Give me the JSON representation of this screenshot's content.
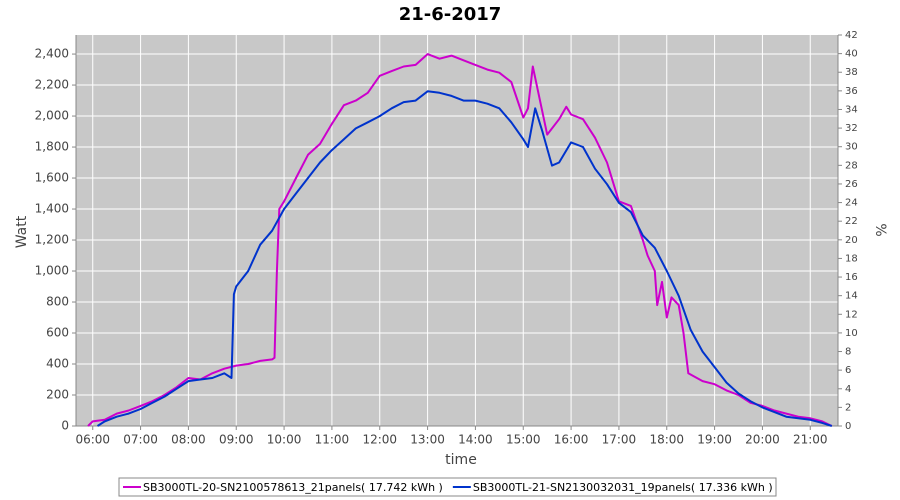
{
  "chart_data": {
    "type": "line",
    "title": "21-6-2017",
    "xlabel": "time",
    "ylabel": "Watt",
    "y2label": "%",
    "xlim": [
      5.65,
      21.58
    ],
    "xticks": [
      {
        "value": 6,
        "label": "06:00"
      },
      {
        "value": 7,
        "label": "07:00"
      },
      {
        "value": 8,
        "label": "08:00"
      },
      {
        "value": 9,
        "label": "09:00"
      },
      {
        "value": 10,
        "label": "10:00"
      },
      {
        "value": 11,
        "label": "11:00"
      },
      {
        "value": 12,
        "label": "12:00"
      },
      {
        "value": 13,
        "label": "13:00"
      },
      {
        "value": 14,
        "label": "14:00"
      },
      {
        "value": 15,
        "label": "15:00"
      },
      {
        "value": 16,
        "label": "16:00"
      },
      {
        "value": 17,
        "label": "17:00"
      },
      {
        "value": 18,
        "label": "18:00"
      },
      {
        "value": 19,
        "label": "19:00"
      },
      {
        "value": 20,
        "label": "20:00"
      },
      {
        "value": 21,
        "label": "21:00"
      }
    ],
    "ylim": [
      0,
      2523
    ],
    "yticks": [
      0,
      200,
      400,
      600,
      800,
      {
        "value": 1000,
        "label": "1,000"
      },
      {
        "value": 1200,
        "label": "1,200"
      },
      {
        "value": 1400,
        "label": "1,400"
      },
      {
        "value": 1600,
        "label": "1,600"
      },
      {
        "value": 1800,
        "label": "1,800"
      },
      {
        "value": 2000,
        "label": "2,000"
      },
      {
        "value": 2200,
        "label": "2,200"
      },
      {
        "value": 2400,
        "label": "2,400"
      }
    ],
    "y2lim": [
      0,
      42
    ],
    "y2ticks": [
      0,
      2,
      4,
      6,
      8,
      10,
      12,
      14,
      16,
      18,
      20,
      22,
      24,
      26,
      28,
      30,
      32,
      34,
      36,
      38,
      40,
      42
    ],
    "grid": true,
    "series": [
      {
        "name": "SB3000TL-20-SN2100578613_21panels( 17.742 kWh )",
        "color": "#cc00cc",
        "x": [
          5.9,
          6.0,
          6.25,
          6.5,
          6.75,
          7.0,
          7.25,
          7.5,
          7.75,
          8.0,
          8.25,
          8.5,
          8.75,
          9.0,
          9.25,
          9.5,
          9.75,
          9.8,
          9.85,
          9.9,
          10.0,
          10.25,
          10.5,
          10.75,
          11.0,
          11.25,
          11.5,
          11.75,
          12.0,
          12.25,
          12.5,
          12.75,
          13.0,
          13.25,
          13.5,
          13.75,
          14.0,
          14.25,
          14.5,
          14.75,
          15.0,
          15.1,
          15.2,
          15.35,
          15.5,
          15.75,
          15.9,
          16.0,
          16.25,
          16.5,
          16.75,
          17.0,
          17.25,
          17.5,
          17.6,
          17.75,
          17.8,
          17.9,
          18.0,
          18.1,
          18.25,
          18.35,
          18.45,
          18.75,
          19.0,
          19.25,
          19.5,
          19.75,
          20.0,
          20.25,
          20.5,
          20.75,
          21.0,
          21.25,
          21.45
        ],
        "values": [
          0,
          30,
          40,
          80,
          100,
          130,
          160,
          200,
          250,
          310,
          300,
          340,
          370,
          390,
          400,
          420,
          430,
          440,
          1000,
          1400,
          1450,
          1600,
          1750,
          1820,
          1950,
          2070,
          2100,
          2150,
          2260,
          2290,
          2320,
          2330,
          2400,
          2370,
          2390,
          2360,
          2330,
          2300,
          2280,
          2220,
          1990,
          2050,
          2320,
          2100,
          1880,
          1980,
          2060,
          2010,
          1980,
          1860,
          1700,
          1450,
          1420,
          1200,
          1100,
          1000,
          780,
          930,
          700,
          830,
          780,
          600,
          340,
          290,
          270,
          230,
          200,
          150,
          130,
          100,
          80,
          60,
          50,
          30,
          0
        ]
      },
      {
        "name": "SB3000TL-21-SN2130032031_19panels( 17.336 kWh )",
        "color": "#0033cc",
        "x": [
          6.1,
          6.25,
          6.5,
          6.75,
          7.0,
          7.25,
          7.5,
          7.75,
          8.0,
          8.25,
          8.5,
          8.75,
          8.9,
          8.95,
          9.0,
          9.25,
          9.5,
          9.75,
          10.0,
          10.25,
          10.5,
          10.75,
          11.0,
          11.25,
          11.5,
          11.75,
          12.0,
          12.25,
          12.5,
          12.75,
          13.0,
          13.25,
          13.5,
          13.75,
          14.0,
          14.25,
          14.5,
          14.75,
          15.0,
          15.1,
          15.25,
          15.4,
          15.6,
          15.75,
          16.0,
          16.25,
          16.5,
          16.75,
          17.0,
          17.25,
          17.5,
          17.75,
          18.0,
          18.25,
          18.5,
          18.75,
          19.0,
          19.25,
          19.5,
          19.75,
          20.0,
          20.25,
          20.5,
          20.75,
          21.0,
          21.25,
          21.45
        ],
        "values": [
          0,
          30,
          60,
          80,
          110,
          150,
          190,
          240,
          290,
          300,
          310,
          340,
          310,
          850,
          900,
          1000,
          1170,
          1260,
          1400,
          1500,
          1600,
          1700,
          1780,
          1850,
          1920,
          1960,
          2000,
          2050,
          2090,
          2100,
          2160,
          2150,
          2130,
          2100,
          2100,
          2080,
          2050,
          1960,
          1850,
          1800,
          2050,
          1900,
          1680,
          1700,
          1830,
          1800,
          1660,
          1560,
          1440,
          1380,
          1230,
          1150,
          1000,
          840,
          620,
          480,
          380,
          280,
          210,
          160,
          120,
          90,
          60,
          50,
          40,
          20,
          0
        ]
      }
    ]
  }
}
